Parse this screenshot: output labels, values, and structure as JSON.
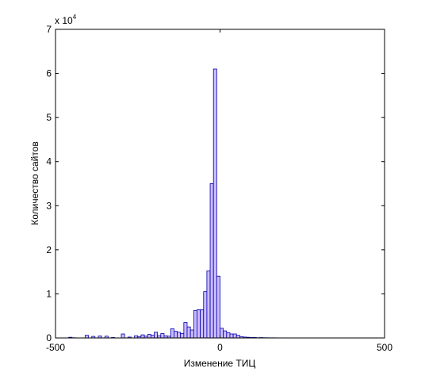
{
  "chart_data": {
    "type": "bar",
    "title": "",
    "xlabel": "Изменение ТИЦ",
    "ylabel": "Количество сайтов",
    "xlim": [
      -500,
      500
    ],
    "ylim": [
      0,
      70000
    ],
    "x_ticks": [
      -500,
      0,
      500
    ],
    "x_tick_labels": [
      "-500",
      "0",
      "500"
    ],
    "y_ticks": [
      0,
      1,
      2,
      3,
      4,
      5,
      6,
      7
    ],
    "y_tick_labels": [
      "0",
      "1",
      "2",
      "3",
      "4",
      "5",
      "6",
      "7"
    ],
    "y_multiplier_base": "x 10",
    "y_multiplier_exponent": "4",
    "bin_width": 10,
    "grid": false,
    "colors": {
      "bar_fill": "#ccbbff",
      "bar_edge": "#0000aa",
      "axes": "#000000"
    },
    "bins": [
      {
        "center": -455,
        "value": 150
      },
      {
        "center": -445,
        "value": 50
      },
      {
        "center": -405,
        "value": 600
      },
      {
        "center": -385,
        "value": 350
      },
      {
        "center": -365,
        "value": 450
      },
      {
        "center": -345,
        "value": 400
      },
      {
        "center": -325,
        "value": 100
      },
      {
        "center": -295,
        "value": 900
      },
      {
        "center": -275,
        "value": 200
      },
      {
        "center": -255,
        "value": 500
      },
      {
        "center": -245,
        "value": 300
      },
      {
        "center": -235,
        "value": 700
      },
      {
        "center": -225,
        "value": 400
      },
      {
        "center": -215,
        "value": 800
      },
      {
        "center": -205,
        "value": 600
      },
      {
        "center": -195,
        "value": 1300
      },
      {
        "center": -185,
        "value": 500
      },
      {
        "center": -175,
        "value": 1000
      },
      {
        "center": -165,
        "value": 500
      },
      {
        "center": -155,
        "value": 400
      },
      {
        "center": -145,
        "value": 2100
      },
      {
        "center": -135,
        "value": 1500
      },
      {
        "center": -125,
        "value": 1300
      },
      {
        "center": -115,
        "value": 1000
      },
      {
        "center": -105,
        "value": 3500
      },
      {
        "center": -95,
        "value": 2500
      },
      {
        "center": -85,
        "value": 1800
      },
      {
        "center": -75,
        "value": 6200
      },
      {
        "center": -65,
        "value": 6400
      },
      {
        "center": -55,
        "value": 6400
      },
      {
        "center": -45,
        "value": 10500
      },
      {
        "center": -35,
        "value": 15200
      },
      {
        "center": -25,
        "value": 35000
      },
      {
        "center": -15,
        "value": 61000
      },
      {
        "center": -5,
        "value": 14000
      },
      {
        "center": 5,
        "value": 2200
      },
      {
        "center": 15,
        "value": 1600
      },
      {
        "center": 25,
        "value": 1200
      },
      {
        "center": 35,
        "value": 900
      },
      {
        "center": 45,
        "value": 900
      },
      {
        "center": 55,
        "value": 600
      },
      {
        "center": 65,
        "value": 300
      },
      {
        "center": 75,
        "value": 200
      },
      {
        "center": 85,
        "value": 150
      },
      {
        "center": 95,
        "value": 100
      },
      {
        "center": 105,
        "value": 100
      },
      {
        "center": 115,
        "value": 50
      },
      {
        "center": 125,
        "value": 80
      },
      {
        "center": 135,
        "value": 50
      },
      {
        "center": 145,
        "value": 40
      },
      {
        "center": 155,
        "value": 30
      },
      {
        "center": 165,
        "value": 30
      },
      {
        "center": 175,
        "value": 20
      },
      {
        "center": 185,
        "value": 20
      },
      {
        "center": 195,
        "value": 20
      }
    ]
  }
}
